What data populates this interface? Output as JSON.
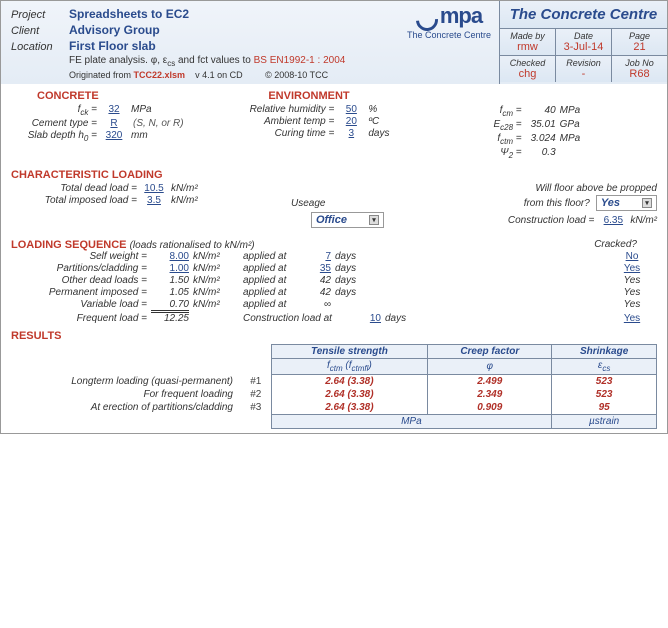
{
  "header": {
    "project_lbl": "Project",
    "project": "Spreadsheets to EC2",
    "client_lbl": "Client",
    "client": "Advisory Group",
    "location_lbl": "Location",
    "location": "First Floor slab",
    "desc_prefix": "FE plate analysis. φ, ε",
    "desc_sub": "cs",
    "desc_mid": " and fct values to ",
    "desc_ref": "BS EN1992-1 : 2004",
    "orig_prefix": "Originated from ",
    "orig_file": "TCC22.xlsm",
    "orig_ver": "v 4.1 on CD",
    "orig_copy": "© 2008-10 TCC",
    "brand": "The Concrete Centre",
    "made_lbl": "Made by",
    "made": "rmw",
    "date_lbl": "Date",
    "date": "3-Jul-14",
    "page_lbl": "Page",
    "page": "21",
    "checked_lbl": "Checked",
    "checked": "chg",
    "rev_lbl": "Revision",
    "rev": "-",
    "job_lbl": "Job No",
    "job": "R68",
    "logo_text": "mpa",
    "logo_sub": "The Concrete Centre"
  },
  "concrete": {
    "title": "CONCRETE",
    "fck_lbl": "f",
    "fck_sub": "ck",
    "fck_eq": " =",
    "fck": "32",
    "fck_u": "MPa",
    "cement_lbl": "Cement type =",
    "cement": "R",
    "cement_note": "(S, N, or R)",
    "slab_lbl": "Slab depth h",
    "slab_sub": "0",
    "slab_eq": " =",
    "slab": "320",
    "slab_u": "mm"
  },
  "env": {
    "title": "ENVIRONMENT",
    "rh_lbl": "Relative humidity =",
    "rh": "50",
    "rh_u": "%",
    "temp_lbl": "Ambient temp =",
    "temp": "20",
    "temp_u": "ºC",
    "cure_lbl": "Curing time =",
    "cure": "3",
    "cure_u": "days"
  },
  "derived": {
    "fcm_lbl": "f",
    "fcm_sub": "cm",
    "fcm_eq": " =",
    "fcm": "40",
    "fcm_u": "MPa",
    "ec_lbl": "E",
    "ec_sub": "c28",
    "ec_eq": " =",
    "ec": "35.01",
    "ec_u": "GPa",
    "fctm_lbl": "f",
    "fctm_sub": "ctm",
    "fctm_eq": " =",
    "fctm": "3.024",
    "fctm_u": "MPa",
    "psi_lbl": "Ψ",
    "psi_sub": "2",
    "psi_eq": " =",
    "psi": "0.3"
  },
  "loading": {
    "title": "CHARACTERISTIC LOADING",
    "dead_lbl": "Total dead load =",
    "dead": "10.5",
    "dead_u": "kN/m²",
    "imp_lbl": "Total imposed load =",
    "imp": "3.5",
    "imp_u": "kN/m²",
    "use_lbl": "Useage",
    "use": "Office",
    "prop_q1": "Will floor above be propped",
    "prop_q2": "from this floor?",
    "prop": "Yes",
    "cons_lbl": "Construction load =",
    "cons": "6.35",
    "cons_u": "kN/m²"
  },
  "seq": {
    "title": "LOADING SEQUENCE",
    "note": "(loads rationalised to kN/m²)",
    "cracked_hdr": "Cracked?",
    "rows": [
      {
        "lbl": "Self weight =",
        "v": "8.00",
        "u": "kN/m²",
        "app": "applied at",
        "d": "7",
        "du": "days",
        "c": "No",
        "inp": true,
        "clink": true
      },
      {
        "lbl": "Partitions/cladding =",
        "v": "1.00",
        "u": "kN/m²",
        "app": "applied at",
        "d": "35",
        "du": "days",
        "c": "Yes",
        "inp": true,
        "clink": true
      },
      {
        "lbl": "Other dead loads =",
        "v": "1.50",
        "u": "kN/m²",
        "app": "applied at",
        "d": "42",
        "du": "days",
        "c": "Yes",
        "inp": false,
        "clink": false
      },
      {
        "lbl": "Permanent imposed =",
        "v": "1.05",
        "u": "kN/m²",
        "app": "applied at",
        "d": "42",
        "du": "days",
        "c": "Yes",
        "inp": false,
        "clink": false
      },
      {
        "lbl": "Variable load =",
        "v": "0.70",
        "u": "kN/m²",
        "app": "applied at",
        "d": "∞",
        "du": "",
        "c": "Yes",
        "inp": false,
        "clink": false
      }
    ],
    "freq_lbl": "Frequent load =",
    "freq": "12.25",
    "cons_at": "Construction load at",
    "cons_d": "10",
    "cons_du": "days",
    "cons_c": "Yes"
  },
  "results": {
    "title": "RESULTS",
    "h_ts": "Tensile strength",
    "h_ts2_a": "f",
    "h_ts2_asub": "ctm",
    "h_ts2_b": " (f",
    "h_ts2_bsub": "ctmfl",
    "h_ts2_c": ")",
    "h_cf": "Creep factor",
    "h_cf2": "φ",
    "h_sh": "Shrinkage",
    "h_sh2": "ε",
    "h_sh2_sub": "cs",
    "rows": [
      {
        "lbl": "Longterm loading (quasi-permanent)",
        "n": "#1",
        "ts": "2.64 (3.38)",
        "cf": "2.499",
        "sh": "523"
      },
      {
        "lbl": "For frequent loading",
        "n": "#2",
        "ts": "2.64 (3.38)",
        "cf": "2.349",
        "sh": "523"
      },
      {
        "lbl": "At erection of partitions/cladding",
        "n": "#3",
        "ts": "2.64 (3.38)",
        "cf": "0.909",
        "sh": "95"
      }
    ],
    "ft_ts": "MPa",
    "ft_sh": "µstrain"
  }
}
